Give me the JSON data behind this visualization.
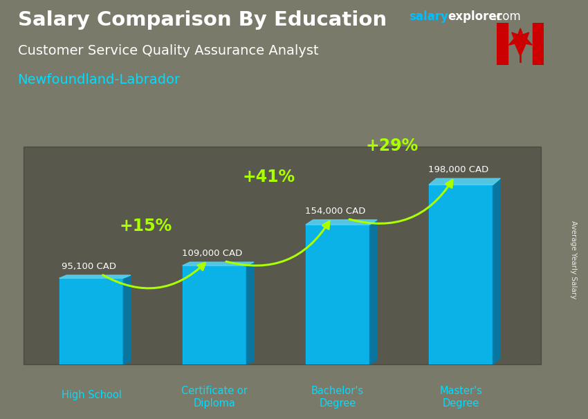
{
  "title": "Salary Comparison By Education",
  "subtitle": "Customer Service Quality Assurance Analyst",
  "location": "Newfoundland-Labrador",
  "ylabel": "Average Yearly Salary",
  "categories": [
    "High School",
    "Certificate or\nDiploma",
    "Bachelor's\nDegree",
    "Master's\nDegree"
  ],
  "values": [
    95100,
    109000,
    154000,
    198000
  ],
  "value_labels": [
    "95,100 CAD",
    "109,000 CAD",
    "154,000 CAD",
    "198,000 CAD"
  ],
  "pct_changes": [
    "+15%",
    "+41%",
    "+29%"
  ],
  "bar_color_face": "#00BFFF",
  "bar_color_side": "#007AAA",
  "bar_color_top": "#55D5F5",
  "title_color": "#FFFFFF",
  "subtitle_color": "#FFFFFF",
  "location_color": "#00DDFF",
  "label_color": "#FFFFFF",
  "pct_color": "#AAFF00",
  "category_color": "#00DDFF",
  "bar_width": 0.52,
  "ylim_max": 240000,
  "bg_color": "#7a7a6a",
  "watermark_salary_color": "#00BFFF",
  "watermark_rest_color": "#FFFFFF"
}
